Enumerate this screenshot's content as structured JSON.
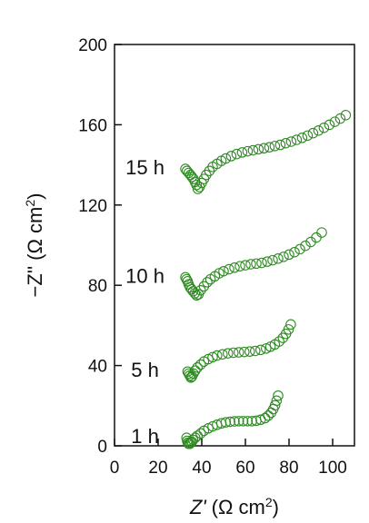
{
  "chart_data": {
    "type": "scatter",
    "title": "",
    "xlabel": {
      "italic": "Z'",
      "unit": "(Ω cm",
      "sup": "2",
      "close": ")"
    },
    "ylabel": {
      "prefix": "−Z''",
      "unit": "(Ω cm",
      "sup": "2",
      "close": ")"
    },
    "xlim": [
      0,
      110
    ],
    "ylim": [
      0,
      200
    ],
    "xticks": [
      "0",
      "20",
      "40",
      "60",
      "80",
      "100"
    ],
    "yticks": [
      "0",
      "40",
      "80",
      "120",
      "160",
      "200"
    ],
    "xtick_values": [
      0,
      20,
      40,
      60,
      80,
      100
    ],
    "ytick_values": [
      0,
      40,
      80,
      120,
      160,
      200
    ],
    "grid": false,
    "marker": "open-circle",
    "marker_color": "#2e8b22",
    "series": [
      {
        "name": "1 h",
        "x": [
          33.0,
          33.3,
          33.6,
          34.0,
          34.5,
          35.0,
          35.5,
          36.0,
          37.0,
          38.0,
          39.5,
          41.0,
          43.0,
          45.0,
          47.0,
          49.0,
          51.0,
          53.0,
          55.0,
          57.0,
          59.0,
          61.0,
          63.0,
          65.0,
          67.0,
          69.0,
          70.5,
          71.8,
          72.8,
          73.6,
          74.3,
          75.0
        ],
        "y": [
          4.0,
          2.5,
          1.5,
          1.0,
          1.0,
          1.5,
          2.0,
          3.0,
          4.0,
          5.0,
          6.2,
          7.5,
          8.7,
          9.7,
          10.5,
          11.2,
          11.7,
          12.0,
          12.2,
          12.3,
          12.3,
          12.3,
          12.3,
          12.5,
          13.0,
          13.8,
          15.0,
          16.5,
          18.3,
          20.2,
          22.5,
          25.0
        ]
      },
      {
        "name": "5 h",
        "x": [
          33.5,
          34.0,
          34.5,
          35.0,
          35.5,
          36.2,
          37.0,
          38.0,
          39.5,
          41.0,
          43.0,
          45.0,
          47.0,
          49.5,
          52.0,
          54.5,
          57.0,
          59.5,
          62.0,
          64.5,
          67.0,
          69.5,
          71.5,
          73.5,
          75.5,
          77.2,
          78.6,
          79.8,
          80.8
        ],
        "y": [
          37.0,
          36.0,
          35.0,
          34.0,
          34.5,
          36.0,
          37.5,
          39.0,
          40.5,
          42.0,
          43.2,
          44.2,
          45.0,
          45.6,
          46.1,
          46.4,
          46.6,
          46.8,
          47.0,
          47.3,
          47.8,
          48.5,
          49.4,
          50.5,
          52.0,
          53.8,
          55.8,
          58.0,
          60.5
        ]
      },
      {
        "name": "10 h",
        "x": [
          32.5,
          33.0,
          33.5,
          34.0,
          34.6,
          35.3,
          36.0,
          36.8,
          37.6,
          38.5,
          39.5,
          41.0,
          42.5,
          44.0,
          46.0,
          48.0,
          50.0,
          52.5,
          55.0,
          57.5,
          60.0,
          62.5,
          65.0,
          67.5,
          70.0,
          72.5,
          75.0,
          77.5,
          80.0,
          82.5,
          85.0,
          87.5,
          90.0,
          92.5,
          95.0
        ],
        "y": [
          84.0,
          83.0,
          82.0,
          80.5,
          79.0,
          78.0,
          77.0,
          76.0,
          75.0,
          75.5,
          77.5,
          79.5,
          81.5,
          83.0,
          84.5,
          86.0,
          87.0,
          88.0,
          88.8,
          89.5,
          90.0,
          90.5,
          90.8,
          91.2,
          91.8,
          92.5,
          93.3,
          94.2,
          95.3,
          96.5,
          98.0,
          99.7,
          101.6,
          103.8,
          106.3
        ]
      },
      {
        "name": "15 h",
        "x": [
          32.5,
          33.2,
          34.0,
          34.8,
          35.5,
          36.2,
          36.9,
          37.6,
          38.2,
          39.0,
          40.0,
          41.0,
          42.0,
          43.5,
          45.0,
          47.0,
          49.0,
          51.0,
          53.5,
          56.0,
          58.5,
          61.0,
          63.5,
          66.0,
          68.5,
          71.0,
          73.5,
          76.0,
          78.5,
          81.0,
          83.5,
          86.0,
          88.5,
          91.0,
          93.5,
          96.0,
          98.5,
          101.0,
          103.5,
          106.0
        ],
        "y": [
          138.0,
          137.0,
          136.0,
          135.0,
          134.0,
          133.0,
          131.5,
          130.0,
          128.0,
          129.0,
          131.0,
          133.0,
          135.0,
          137.0,
          139.0,
          140.5,
          142.0,
          143.2,
          144.4,
          145.4,
          146.2,
          146.8,
          147.3,
          147.8,
          148.3,
          148.8,
          149.4,
          150.0,
          150.8,
          151.6,
          152.5,
          153.5,
          154.6,
          155.8,
          157.1,
          158.5,
          160.0,
          161.5,
          163.1,
          164.8
        ]
      }
    ]
  }
}
